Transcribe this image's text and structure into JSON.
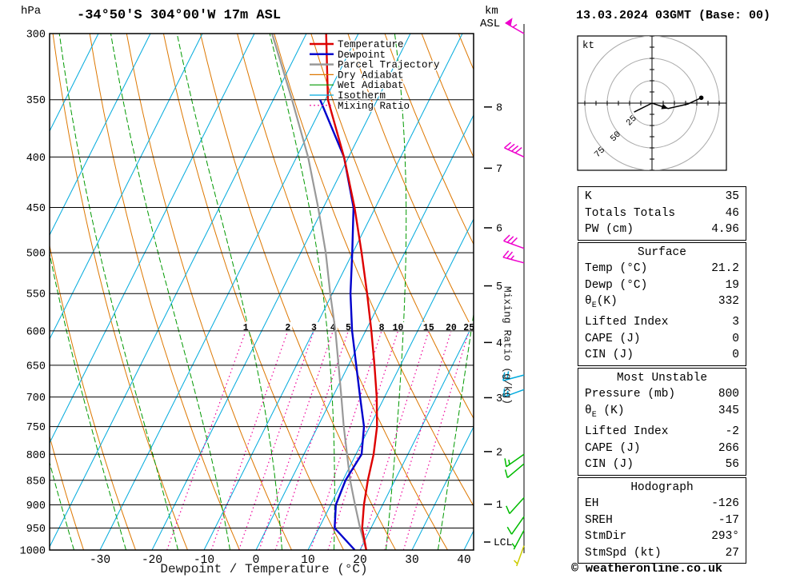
{
  "header": {
    "station": "-34°50'S 304°00'W 17m ASL",
    "datetime": "13.03.2024 03GMT (Base: 00)",
    "copyright": "© weatheronline.co.uk"
  },
  "axes": {
    "pressure_unit": "hPa",
    "pressure_ticks": [
      300,
      350,
      400,
      450,
      500,
      550,
      600,
      650,
      700,
      750,
      800,
      850,
      900,
      950,
      1000
    ],
    "temp_ticks": [
      -30,
      -20,
      -10,
      0,
      10,
      20,
      30,
      40
    ],
    "x_label": "Dewpoint / Temperature (°C)",
    "km_unit_line1": "km",
    "km_unit_line2": "ASL",
    "km_ticks": [
      1,
      2,
      3,
      4,
      5,
      6,
      7,
      8
    ],
    "lcl_label": "LCL",
    "mixing_axis_label": "Mixing Ratio (g/kg)"
  },
  "legend": [
    {
      "label": "Temperature",
      "color": "#dd0000",
      "style": "solid",
      "width": 2.5
    },
    {
      "label": "Dewpoint",
      "color": "#0000cc",
      "style": "solid",
      "width": 2.5
    },
    {
      "label": "Parcel Trajectory",
      "color": "#999999",
      "style": "solid",
      "width": 2.5
    },
    {
      "label": "Dry Adiabat",
      "color": "#dd7700",
      "style": "solid",
      "width": 1.2
    },
    {
      "label": "Wet Adiabat",
      "color": "#009900",
      "style": "solid",
      "width": 1.2
    },
    {
      "label": "Isotherm",
      "color": "#00aadd",
      "style": "solid",
      "width": 1.2
    },
    {
      "label": "Mixing Ratio",
      "color": "#ee0099",
      "style": "dotted",
      "width": 1.2
    }
  ],
  "colors": {
    "temperature": "#dd0000",
    "dewpoint": "#0000cc",
    "parcel": "#999999",
    "dry_adiabat": "#dd7700",
    "wet_adiabat": "#009900",
    "isotherm": "#00aadd",
    "mixing_ratio": "#ee0099",
    "grid": "#000000"
  },
  "chart_data": {
    "type": "skewt_log_p_sounding",
    "title": "-34°50'S 304°00'W 17m ASL",
    "valid": "13.03.2024 03GMT (Base: 00)",
    "pressure_hpa": [
      1000,
      950,
      900,
      850,
      800,
      750,
      700,
      650,
      600,
      550,
      500,
      450,
      400,
      350,
      300
    ],
    "temperature_c": [
      21.2,
      18.3,
      16.4,
      14.8,
      13.4,
      11.4,
      8.5,
      5.0,
      1.1,
      -3.3,
      -8.3,
      -14.0,
      -20.9,
      -29.5,
      -36.2
    ],
    "dewpoint_c": [
      19.0,
      13.0,
      11.0,
      10.5,
      11.1,
      8.9,
      5.3,
      1.5,
      -2.6,
      -6.5,
      -10.1,
      -14.2,
      -20.9,
      -31.0,
      null
    ],
    "parcel_c": [
      21.2,
      17.9,
      14.7,
      11.4,
      8.3,
      5.0,
      1.7,
      -1.9,
      -5.8,
      -10.4,
      -15.2,
      -21.0,
      -27.8,
      -36.4,
      -46.6
    ],
    "mixing_ratio_lines_g_kg": [
      1,
      2,
      3,
      4,
      5,
      8,
      10,
      15,
      20,
      25
    ],
    "x_range_c": [
      -40,
      41.8
    ],
    "p_range_hpa": [
      300,
      1000
    ],
    "grid": "on",
    "legend_position": "top-right-of-plot"
  },
  "wind_barbs": [
    {
      "pressure": 300,
      "color": "#ee00cc",
      "dir_deg": 300,
      "speed_kt": 55
    },
    {
      "pressure": 400,
      "color": "#ee00cc",
      "dir_deg": 295,
      "speed_kt": 40
    },
    {
      "pressure": 495,
      "color": "#ee00cc",
      "dir_deg": 290,
      "speed_kt": 30
    },
    {
      "pressure": 512,
      "color": "#ee00cc",
      "dir_deg": 285,
      "speed_kt": 25
    },
    {
      "pressure": 665,
      "color": "#00aadd",
      "dir_deg": 255,
      "speed_kt": 20
    },
    {
      "pressure": 688,
      "color": "#00aadd",
      "dir_deg": 250,
      "speed_kt": 15
    },
    {
      "pressure": 800,
      "color": "#00bb00",
      "dir_deg": 235,
      "speed_kt": 15
    },
    {
      "pressure": 818,
      "color": "#00bb00",
      "dir_deg": 230,
      "speed_kt": 10
    },
    {
      "pressure": 885,
      "color": "#00bb00",
      "dir_deg": 222,
      "speed_kt": 10
    },
    {
      "pressure": 925,
      "color": "#00bb00",
      "dir_deg": 215,
      "speed_kt": 10
    },
    {
      "pressure": 955,
      "color": "#00bb00",
      "dir_deg": 208,
      "speed_kt": 5
    },
    {
      "pressure": 990,
      "color": "#cccc00",
      "dir_deg": 200,
      "speed_kt": 5
    }
  ],
  "hodograph": {
    "unit": "kt",
    "rings_kt": [
      25,
      50,
      75
    ],
    "trace_kt": [
      {
        "u": -20,
        "v": -10
      },
      {
        "u": 0,
        "v": 0
      },
      {
        "u": 18,
        "v": -6
      },
      {
        "u": 40,
        "v": -1
      },
      {
        "u": 55,
        "v": 6
      }
    ]
  },
  "tables": [
    {
      "rows": [
        {
          "label": "K",
          "value": "35"
        },
        {
          "label": "Totals Totals",
          "value": "46"
        },
        {
          "label": "PW (cm)",
          "value": "4.96"
        }
      ]
    },
    {
      "header": "Surface",
      "rows": [
        {
          "label": "Temp (°C)",
          "value": "21.2"
        },
        {
          "label": "Dewp (°C)",
          "value": "19"
        },
        {
          "label": "θ_E(K)",
          "value": "332"
        },
        {
          "label": "Lifted Index",
          "value": "3"
        },
        {
          "label": "CAPE (J)",
          "value": "0"
        },
        {
          "label": "CIN (J)",
          "value": "0"
        }
      ]
    },
    {
      "header": "Most Unstable",
      "rows": [
        {
          "label": "Pressure (mb)",
          "value": "800"
        },
        {
          "label": "θ_E (K)",
          "value": "345"
        },
        {
          "label": "Lifted Index",
          "value": "-2"
        },
        {
          "label": "CAPE (J)",
          "value": "266"
        },
        {
          "label": "CIN (J)",
          "value": "56"
        }
      ]
    },
    {
      "header": "Hodograph",
      "rows": [
        {
          "label": "EH",
          "value": "-126"
        },
        {
          "label": "SREH",
          "value": "-17"
        },
        {
          "label": "StmDir",
          "value": "293°"
        },
        {
          "label": "StmSpd (kt)",
          "value": "27"
        }
      ]
    }
  ]
}
